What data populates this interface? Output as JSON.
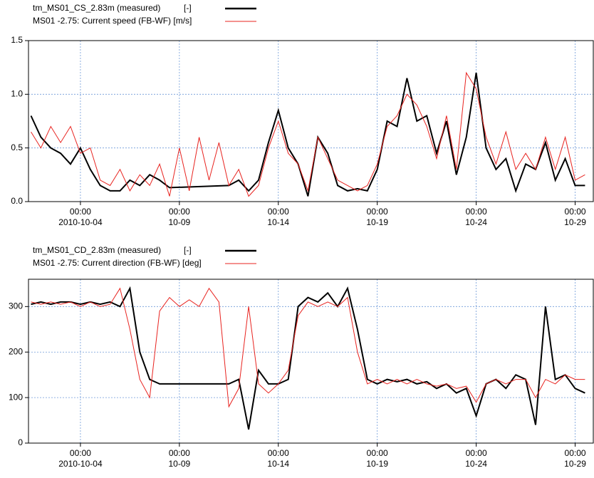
{
  "chart_data": [
    {
      "type": "line",
      "xlim": [
        "2010-10-01 09:00",
        "2010-10-29 22:00"
      ],
      "xticks": [
        {
          "value": "2010-10-04 00:00",
          "label": [
            "00:00",
            "2010-10-04"
          ]
        },
        {
          "value": "2010-10-09 00:00",
          "label": [
            "00:00",
            "10-09"
          ]
        },
        {
          "value": "2010-10-14 00:00",
          "label": [
            "00:00",
            "10-14"
          ]
        },
        {
          "value": "2010-10-19 00:00",
          "label": [
            "00:00",
            "10-19"
          ]
        },
        {
          "value": "2010-10-24 00:00",
          "label": [
            "00:00",
            "10-24"
          ]
        },
        {
          "value": "2010-10-29 00:00",
          "label": [
            "00:00",
            "10-29"
          ]
        }
      ],
      "ylim": [
        0,
        1.5
      ],
      "yticks": [
        {
          "value": 0,
          "label": "0.0"
        },
        0.5,
        {
          "value": 1,
          "label": "1.0"
        },
        1.5
      ],
      "grid": true,
      "x": [
        "2010-10-01 12:00",
        "2010-10-02 00:00",
        "2010-10-02 12:00",
        "2010-10-03 00:00",
        "2010-10-03 12:00",
        "2010-10-04 00:00",
        "2010-10-04 12:00",
        "2010-10-05 00:00",
        "2010-10-05 12:00",
        "2010-10-06 00:00",
        "2010-10-06 12:00",
        "2010-10-07 00:00",
        "2010-10-07 12:00",
        "2010-10-08 00:00",
        "2010-10-08 12:00",
        "2010-10-09 00:00",
        "2010-10-09 12:00",
        "2010-10-10 00:00",
        "2010-10-10 12:00",
        "2010-10-11 00:00",
        "2010-10-11 12:00",
        "2010-10-12 00:00",
        "2010-10-12 12:00",
        "2010-10-13 00:00",
        "2010-10-13 12:00",
        "2010-10-14 00:00",
        "2010-10-14 12:00",
        "2010-10-15 00:00",
        "2010-10-15 12:00",
        "2010-10-16 00:00",
        "2010-10-16 12:00",
        "2010-10-17 00:00",
        "2010-10-17 12:00",
        "2010-10-18 00:00",
        "2010-10-18 12:00",
        "2010-10-19 00:00",
        "2010-10-19 12:00",
        "2010-10-20 00:00",
        "2010-10-20 12:00",
        "2010-10-21 00:00",
        "2010-10-21 12:00",
        "2010-10-22 00:00",
        "2010-10-22 12:00",
        "2010-10-23 00:00",
        "2010-10-23 12:00",
        "2010-10-24 00:00",
        "2010-10-24 12:00",
        "2010-10-25 00:00",
        "2010-10-25 12:00",
        "2010-10-26 00:00",
        "2010-10-26 12:00",
        "2010-10-27 00:00",
        "2010-10-27 12:00",
        "2010-10-28 00:00",
        "2010-10-28 12:00",
        "2010-10-29 00:00",
        "2010-10-29 12:00"
      ],
      "series": [
        {
          "name": "tm_MS01_CS_2.83m (measured)",
          "unit": "[-]",
          "color": "#000000",
          "x": [
            "2010-10-01 12:00",
            "2010-10-02 00:00",
            "2010-10-02 12:00",
            "2010-10-03 00:00",
            "2010-10-03 12:00",
            "2010-10-04 00:00",
            "2010-10-04 12:00",
            "2010-10-05 00:00",
            "2010-10-05 12:00",
            "2010-10-06 00:00",
            "2010-10-06 12:00",
            "2010-10-07 00:00",
            "2010-10-07 12:00",
            "2010-10-08 00:00",
            "2010-10-08 12:00",
            "2010-10-11 12:00",
            "2010-10-12 00:00",
            "2010-10-12 12:00",
            "2010-10-13 00:00",
            "2010-10-13 12:00",
            "2010-10-14 00:00",
            "2010-10-14 12:00",
            "2010-10-15 00:00",
            "2010-10-15 12:00",
            "2010-10-16 00:00",
            "2010-10-16 12:00",
            "2010-10-17 00:00",
            "2010-10-17 12:00",
            "2010-10-18 00:00",
            "2010-10-18 12:00",
            "2010-10-19 00:00",
            "2010-10-19 12:00",
            "2010-10-20 00:00",
            "2010-10-20 12:00",
            "2010-10-21 00:00",
            "2010-10-21 12:00",
            "2010-10-22 00:00",
            "2010-10-22 12:00",
            "2010-10-23 00:00",
            "2010-10-23 12:00",
            "2010-10-24 00:00",
            "2010-10-24 12:00",
            "2010-10-25 00:00",
            "2010-10-25 12:00",
            "2010-10-26 00:00",
            "2010-10-26 12:00",
            "2010-10-27 00:00",
            "2010-10-27 12:00",
            "2010-10-28 00:00",
            "2010-10-28 12:00",
            "2010-10-29 00:00",
            "2010-10-29 12:00"
          ],
          "values": [
            0.8,
            0.6,
            0.5,
            0.45,
            0.35,
            0.5,
            0.3,
            0.15,
            0.1,
            0.1,
            0.2,
            0.15,
            0.25,
            0.2,
            0.13,
            0.15,
            0.2,
            0.1,
            0.2,
            0.55,
            0.85,
            0.5,
            0.35,
            0.05,
            0.6,
            0.45,
            0.15,
            0.1,
            0.12,
            0.1,
            0.3,
            0.75,
            0.7,
            1.15,
            0.75,
            0.8,
            0.45,
            0.75,
            0.25,
            0.6,
            1.2,
            0.5,
            0.3,
            0.4,
            0.1,
            0.35,
            0.3,
            0.55,
            0.2,
            0.4,
            0.15,
            0.15
          ]
        },
        {
          "name": "MS01 -2.75: Current speed (FB-WF) [m/s]",
          "color": "#e8231f",
          "values": [
            0.65,
            0.5,
            0.7,
            0.55,
            0.7,
            0.45,
            0.5,
            0.2,
            0.15,
            0.3,
            0.1,
            0.25,
            0.15,
            0.35,
            0.05,
            0.5,
            0.1,
            0.6,
            0.2,
            0.55,
            0.15,
            0.3,
            0.05,
            0.15,
            0.5,
            0.75,
            0.45,
            0.35,
            0.1,
            0.6,
            0.4,
            0.2,
            0.15,
            0.1,
            0.15,
            0.35,
            0.7,
            0.8,
            1.0,
            0.9,
            0.7,
            0.4,
            0.8,
            0.3,
            1.2,
            1.05,
            0.6,
            0.35,
            0.65,
            0.3,
            0.45,
            0.3,
            0.6,
            0.3,
            0.6,
            0.2,
            0.25
          ]
        }
      ]
    },
    {
      "type": "line",
      "xlim": [
        "2010-10-01 09:00",
        "2010-10-29 22:00"
      ],
      "xticks": [
        {
          "value": "2010-10-04 00:00",
          "label": [
            "00:00",
            "2010-10-04"
          ]
        },
        {
          "value": "2010-10-09 00:00",
          "label": [
            "00:00",
            "10-09"
          ]
        },
        {
          "value": "2010-10-14 00:00",
          "label": [
            "00:00",
            "10-14"
          ]
        },
        {
          "value": "2010-10-19 00:00",
          "label": [
            "00:00",
            "10-19"
          ]
        },
        {
          "value": "2010-10-24 00:00",
          "label": [
            "00:00",
            "10-24"
          ]
        },
        {
          "value": "2010-10-29 00:00",
          "label": [
            "00:00",
            "10-29"
          ]
        }
      ],
      "ylim": [
        0,
        360
      ],
      "yticks": [
        0,
        100,
        200,
        300
      ],
      "grid": true,
      "x": [
        "2010-10-01 12:00",
        "2010-10-02 00:00",
        "2010-10-02 12:00",
        "2010-10-03 00:00",
        "2010-10-03 12:00",
        "2010-10-04 00:00",
        "2010-10-04 12:00",
        "2010-10-05 00:00",
        "2010-10-05 12:00",
        "2010-10-06 00:00",
        "2010-10-06 12:00",
        "2010-10-07 00:00",
        "2010-10-07 12:00",
        "2010-10-08 00:00",
        "2010-10-08 12:00",
        "2010-10-09 00:00",
        "2010-10-09 12:00",
        "2010-10-10 00:00",
        "2010-10-10 12:00",
        "2010-10-11 00:00",
        "2010-10-11 12:00",
        "2010-10-12 00:00",
        "2010-10-12 12:00",
        "2010-10-13 00:00",
        "2010-10-13 12:00",
        "2010-10-14 00:00",
        "2010-10-14 12:00",
        "2010-10-15 00:00",
        "2010-10-15 12:00",
        "2010-10-16 00:00",
        "2010-10-16 12:00",
        "2010-10-17 00:00",
        "2010-10-17 12:00",
        "2010-10-18 00:00",
        "2010-10-18 12:00",
        "2010-10-19 00:00",
        "2010-10-19 12:00",
        "2010-10-20 00:00",
        "2010-10-20 12:00",
        "2010-10-21 00:00",
        "2010-10-21 12:00",
        "2010-10-22 00:00",
        "2010-10-22 12:00",
        "2010-10-23 00:00",
        "2010-10-23 12:00",
        "2010-10-24 00:00",
        "2010-10-24 12:00",
        "2010-10-25 00:00",
        "2010-10-25 12:00",
        "2010-10-26 00:00",
        "2010-10-26 12:00",
        "2010-10-27 00:00",
        "2010-10-27 12:00",
        "2010-10-28 00:00",
        "2010-10-28 12:00",
        "2010-10-29 00:00",
        "2010-10-29 12:00"
      ],
      "series": [
        {
          "name": "tm_MS01_CD_2.83m (measured)",
          "unit": "[-]",
          "color": "#000000",
          "x": [
            "2010-10-01 12:00",
            "2010-10-02 00:00",
            "2010-10-02 12:00",
            "2010-10-03 00:00",
            "2010-10-03 12:00",
            "2010-10-04 00:00",
            "2010-10-04 12:00",
            "2010-10-05 00:00",
            "2010-10-05 12:00",
            "2010-10-06 00:00",
            "2010-10-06 12:00",
            "2010-10-07 00:00",
            "2010-10-07 12:00",
            "2010-10-08 00:00",
            "2010-10-08 12:00",
            "2010-10-11 12:00",
            "2010-10-12 00:00",
            "2010-10-12 12:00",
            "2010-10-13 00:00",
            "2010-10-13 12:00",
            "2010-10-14 00:00",
            "2010-10-14 12:00",
            "2010-10-15 00:00",
            "2010-10-15 12:00",
            "2010-10-16 00:00",
            "2010-10-16 12:00",
            "2010-10-17 00:00",
            "2010-10-17 12:00",
            "2010-10-18 00:00",
            "2010-10-18 12:00",
            "2010-10-19 00:00",
            "2010-10-19 12:00",
            "2010-10-20 00:00",
            "2010-10-20 12:00",
            "2010-10-21 00:00",
            "2010-10-21 12:00",
            "2010-10-22 00:00",
            "2010-10-22 12:00",
            "2010-10-23 00:00",
            "2010-10-23 12:00",
            "2010-10-24 00:00",
            "2010-10-24 12:00",
            "2010-10-25 00:00",
            "2010-10-25 12:00",
            "2010-10-26 00:00",
            "2010-10-26 12:00",
            "2010-10-27 00:00",
            "2010-10-27 12:00",
            "2010-10-28 00:00",
            "2010-10-28 12:00",
            "2010-10-29 00:00",
            "2010-10-29 12:00"
          ],
          "values": [
            305,
            310,
            305,
            310,
            310,
            305,
            310,
            305,
            310,
            300,
            340,
            200,
            140,
            130,
            130,
            130,
            140,
            30,
            160,
            130,
            130,
            140,
            300,
            320,
            310,
            330,
            300,
            340,
            250,
            140,
            130,
            140,
            135,
            140,
            130,
            135,
            120,
            130,
            110,
            120,
            60,
            130,
            140,
            120,
            150,
            140,
            40,
            300,
            140,
            150,
            120,
            110
          ]
        },
        {
          "name": "MS01 -2.75: Current direction (FB-WF) [deg]",
          "color": "#e8231f",
          "values": [
            310,
            305,
            310,
            305,
            310,
            300,
            310,
            300,
            305,
            340,
            250,
            140,
            100,
            290,
            320,
            300,
            315,
            300,
            340,
            310,
            80,
            120,
            300,
            130,
            110,
            130,
            160,
            280,
            310,
            300,
            310,
            300,
            320,
            200,
            130,
            140,
            130,
            140,
            130,
            140,
            130,
            125,
            130,
            120,
            125,
            90,
            130,
            140,
            130,
            140,
            140,
            100,
            140,
            130,
            150,
            140,
            140
          ]
        }
      ]
    }
  ]
}
